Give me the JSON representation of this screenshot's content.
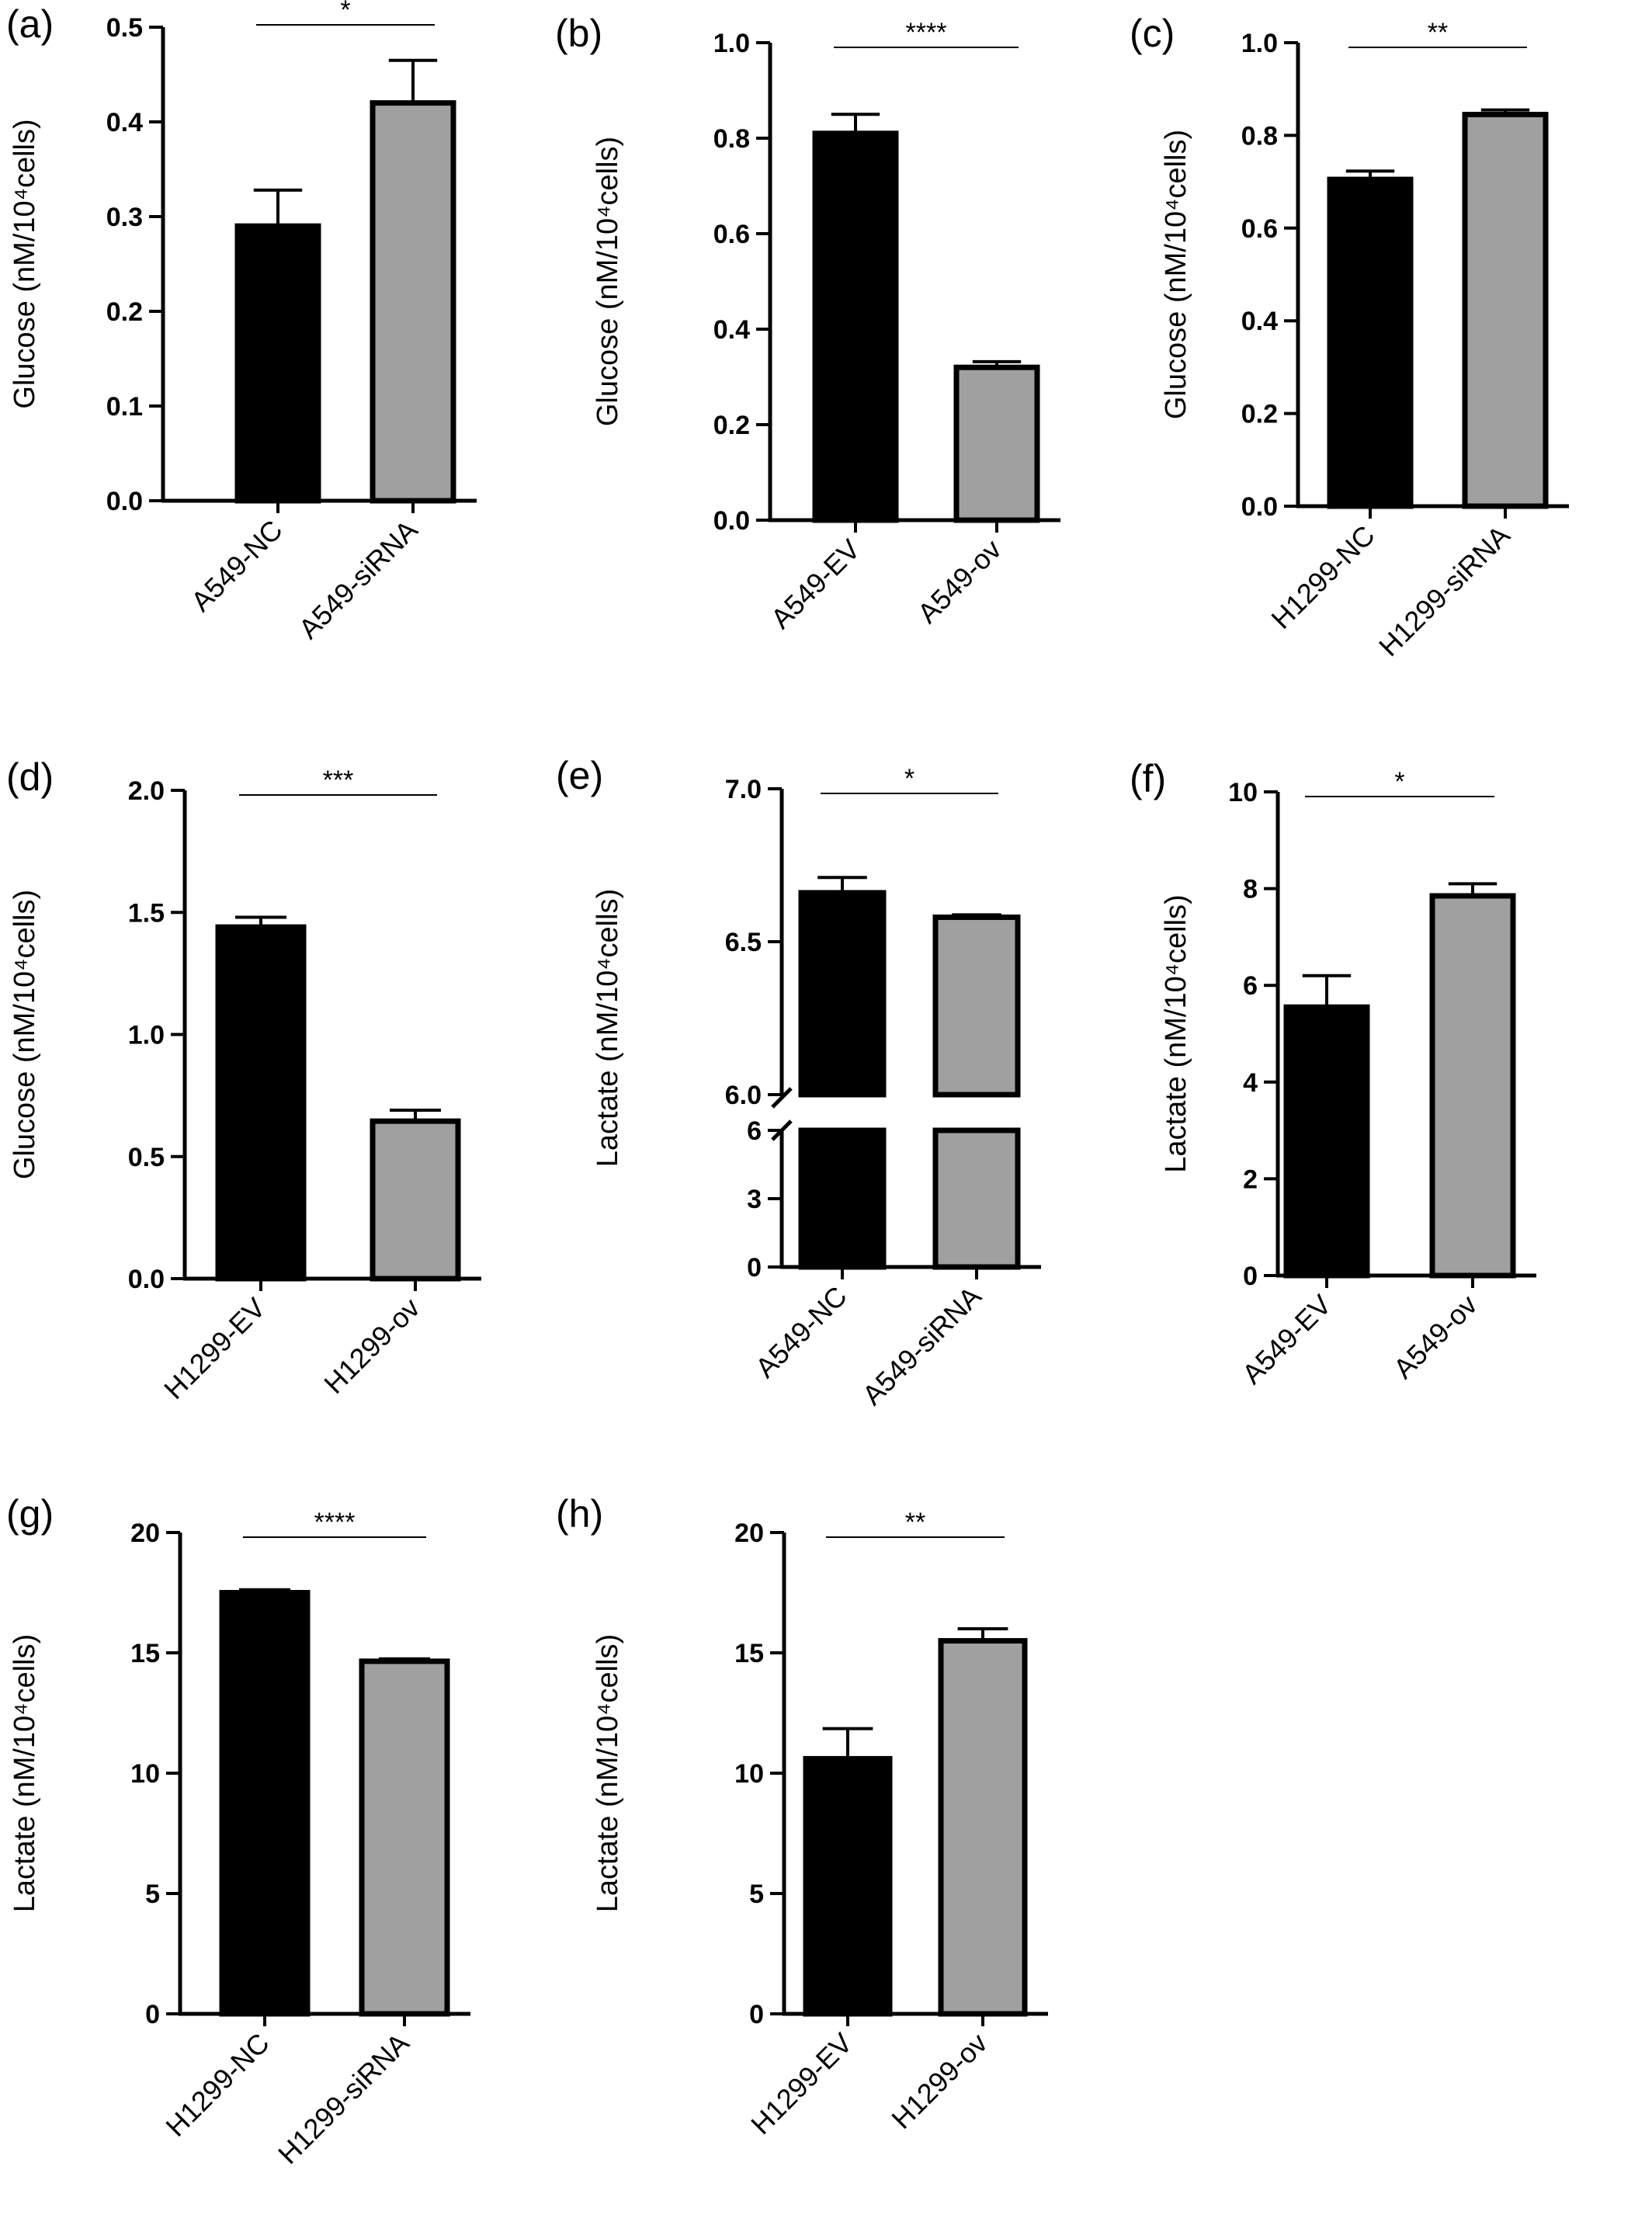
{
  "colors": {
    "bar_dark": "#000000",
    "bar_light": "#a0a0a0",
    "axis": "#000000",
    "background": "#ffffff"
  },
  "chart_data": [
    {
      "panel": "(a)",
      "type": "bar",
      "categories": [
        "A549-NC",
        "A549-siRNA"
      ],
      "values": [
        0.29,
        0.42
      ],
      "errors": [
        0.038,
        0.045
      ],
      "ylabel": "Glucose (nM/10⁴cells)",
      "ylim": [
        0,
        0.5
      ],
      "yticks": [
        "0.0",
        "0.1",
        "0.2",
        "0.3",
        "0.4",
        "0.5"
      ],
      "significance": "*",
      "grid": false
    },
    {
      "panel": "(b)",
      "type": "bar",
      "categories": [
        "A549-EV",
        "A549-ov"
      ],
      "values": [
        0.81,
        0.32
      ],
      "errors": [
        0.04,
        0.012
      ],
      "ylabel": "Glucose (nM/10⁴cells)",
      "ylim": [
        0,
        1.0
      ],
      "yticks": [
        "0.0",
        "0.2",
        "0.4",
        "0.6",
        "0.8",
        "1.0"
      ],
      "significance": "****",
      "grid": false
    },
    {
      "panel": "(c)",
      "type": "bar",
      "categories": [
        "H1299-NC",
        "H1299-siRNA"
      ],
      "values": [
        0.705,
        0.845
      ],
      "errors": [
        0.018,
        0.01
      ],
      "ylabel": "Glucose (nM/10⁴cells)",
      "ylim": [
        0,
        1.0
      ],
      "yticks": [
        "0.0",
        "0.2",
        "0.4",
        "0.6",
        "0.8",
        "1.0"
      ],
      "significance": "**",
      "grid": false
    },
    {
      "panel": "(d)",
      "type": "bar",
      "categories": [
        "H1299-EV",
        "H1299-ov"
      ],
      "values": [
        1.44,
        0.645
      ],
      "errors": [
        0.04,
        0.045
      ],
      "ylabel": "Glucose (nM/10⁴cells)",
      "ylim": [
        0,
        2.0
      ],
      "yticks": [
        "0.0",
        "0.5",
        "1.0",
        "1.5",
        "2.0"
      ],
      "significance": "***",
      "grid": false
    },
    {
      "panel": "(e)",
      "type": "bar",
      "categories": [
        "A549-NC",
        "A549-siRNA"
      ],
      "values": [
        6.66,
        6.58
      ],
      "errors": [
        0.05,
        0.008
      ],
      "ylabel": "Lactate (nM/10⁴cells)",
      "broken_axis": true,
      "lower_segment": {
        "ylim": [
          0,
          6
        ],
        "yticks": [
          "0",
          "3",
          "6"
        ]
      },
      "upper_segment": {
        "ylim": [
          6.0,
          7.0
        ],
        "yticks": [
          "6.0",
          "6.5",
          "7.0"
        ]
      },
      "significance": "*",
      "grid": false
    },
    {
      "panel": "(f)",
      "type": "bar",
      "categories": [
        "A549-EV",
        "A549-ov"
      ],
      "values": [
        5.55,
        7.85
      ],
      "errors": [
        0.65,
        0.25
      ],
      "ylabel": "Lactate (nM/10⁴cells)",
      "ylim": [
        0,
        10
      ],
      "yticks": [
        "0",
        "2",
        "4",
        "6",
        "8",
        "10"
      ],
      "significance": "*",
      "grid": false
    },
    {
      "panel": "(g)",
      "type": "bar",
      "categories": [
        "H1299-NC",
        "H1299-siRNA"
      ],
      "values": [
        17.5,
        14.65
      ],
      "errors": [
        0.12,
        0.1
      ],
      "ylabel": "Lactate (nM/10⁴cells)",
      "ylim": [
        0,
        20
      ],
      "yticks": [
        "0",
        "5",
        "10",
        "15",
        "20"
      ],
      "significance": "****",
      "grid": false
    },
    {
      "panel": "(h)",
      "type": "bar",
      "categories": [
        "H1299-EV",
        "H1299-ov"
      ],
      "values": [
        10.6,
        15.5
      ],
      "errors": [
        1.25,
        0.5
      ],
      "ylabel": "Lactate (nM/10⁴cells)",
      "ylim": [
        0,
        20
      ],
      "yticks": [
        "0",
        "5",
        "10",
        "15",
        "20"
      ],
      "significance": "**",
      "grid": false
    }
  ]
}
